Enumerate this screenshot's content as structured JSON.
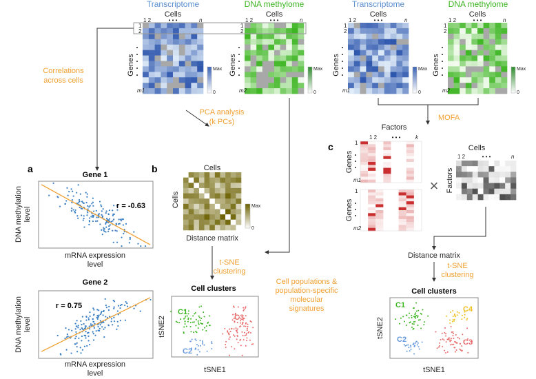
{
  "colors": {
    "transcriptome": "#3a62b5",
    "methylome": "#3cb521",
    "orange": "#f0a030",
    "factors": "#d42020",
    "c1": "#3cb521",
    "c2": "#6699dd",
    "c3": "#e86a6a",
    "c4": "#f0c020"
  },
  "top": {
    "transcriptome_title": "Transcriptome",
    "methylome_title": "DNA methylome",
    "cells": "Cells",
    "genes": "Genes",
    "col1": "1",
    "col2": "2",
    "dots": "• • •",
    "coln": "n",
    "row1": "1",
    "row2": "2",
    "m1": "m1",
    "m2": "m2",
    "max": "Max",
    "zero": "0"
  },
  "arrows": {
    "correlations": [
      "Correlations",
      "across cells"
    ],
    "pca": [
      "PCA analysis",
      "(k PCs)"
    ],
    "mofa": "MOFA",
    "tsne": [
      "t-SNE",
      "clustering"
    ],
    "populations": [
      "Cell populations &",
      "population-specific",
      "molecular",
      "signatures"
    ]
  },
  "panel_a": {
    "label": "a",
    "gene1": {
      "title": "Gene 1",
      "r": "r = -0.63"
    },
    "gene2": {
      "title": "Gene 2",
      "r": "r = 0.75"
    },
    "ylabel": [
      "DNA methylation",
      "level"
    ],
    "xlabel": [
      "mRNA expression",
      "level"
    ]
  },
  "panel_b": {
    "label": "b",
    "cells": "Cells",
    "distance_matrix": "Distance matrix",
    "max": "Max",
    "zero": "0",
    "cell_clusters": "Cell clusters",
    "tsne1": "tSNE1",
    "tsne2": "tSNE2",
    "c1": "C1",
    "c2": "C2",
    "c3": "C3"
  },
  "panel_c": {
    "label": "c",
    "factors": "Factors",
    "genes": "Genes",
    "cells": "Cells",
    "k": "k",
    "times": "×",
    "distance_matrix": "Distance matrix",
    "cell_clusters": "Cell clusters",
    "tsne1": "tSNE1",
    "tsne2": "tSNE2",
    "c1": "C1",
    "c2": "C2",
    "c3": "C3",
    "c4": "C4"
  }
}
